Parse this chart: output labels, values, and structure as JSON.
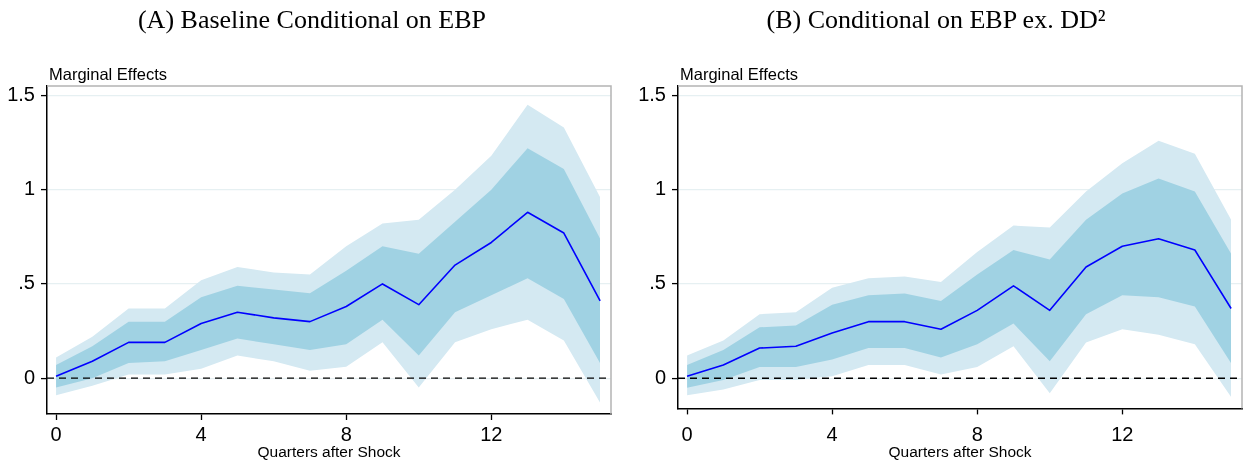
{
  "chart_data": [
    {
      "type": "line",
      "title": "(A) Baseline Conditional on EBP",
      "ylabel": "Marginal Effects",
      "xlabel": "Quarters after Shock",
      "x": [
        0,
        1,
        2,
        3,
        4,
        5,
        6,
        7,
        8,
        9,
        10,
        11,
        12,
        13,
        14,
        15
      ],
      "xlim": [
        -0.25,
        15.3
      ],
      "ylim": [
        -0.19,
        1.55
      ],
      "xticks": [
        0,
        4,
        8,
        12
      ],
      "yticks": [
        0,
        {
          "value": 0.5,
          "label": ".5"
        },
        1,
        1.5
      ],
      "grid": "y",
      "marker": "none",
      "series": [
        {
          "type": "area",
          "color": "#d4e9f2",
          "values": [
            null,
            null,
            null,
            null,
            null,
            null,
            null,
            null,
            null,
            null,
            null,
            null,
            null,
            null,
            null,
            null
          ],
          "lower": [
            -0.09,
            -0.04,
            0.02,
            0.02,
            0.05,
            0.12,
            0.09,
            0.04,
            0.06,
            0.19,
            -0.05,
            0.19,
            0.26,
            0.31,
            0.2,
            -0.13
          ],
          "upper": [
            0.11,
            0.22,
            0.37,
            0.37,
            0.52,
            0.59,
            0.56,
            0.55,
            0.7,
            0.82,
            0.84,
            1.0,
            1.18,
            1.45,
            1.33,
            0.96
          ]
        },
        {
          "type": "area",
          "color": "#a0d2e3",
          "values": [
            null,
            null,
            null,
            null,
            null,
            null,
            null,
            null,
            null,
            null,
            null,
            null,
            null,
            null,
            null,
            null
          ],
          "lower": [
            -0.05,
            0.0,
            0.08,
            0.09,
            0.15,
            0.21,
            0.18,
            0.15,
            0.18,
            0.31,
            0.12,
            0.35,
            0.44,
            0.53,
            0.42,
            0.08
          ],
          "upper": [
            0.07,
            0.17,
            0.3,
            0.3,
            0.43,
            0.49,
            0.47,
            0.45,
            0.57,
            0.7,
            0.66,
            0.83,
            1.0,
            1.22,
            1.11,
            0.74
          ]
        },
        {
          "type": "line",
          "color": "#0000ff",
          "values": [
            0.01,
            0.09,
            0.19,
            0.19,
            0.29,
            0.35,
            0.32,
            0.3,
            0.38,
            0.5,
            0.39,
            0.6,
            0.72,
            0.88,
            0.77,
            0.41
          ]
        }
      ],
      "ref_lines": [
        {
          "axis": "y",
          "value": 0,
          "color": "#000000",
          "line_style": "dashed"
        }
      ]
    },
    {
      "type": "line",
      "title": "(B) Conditional on EBP ex. DD²",
      "ylabel": "Marginal Effects",
      "xlabel": "Quarters after Shock",
      "x": [
        0,
        1,
        2,
        3,
        4,
        5,
        6,
        7,
        8,
        9,
        10,
        11,
        12,
        13,
        14,
        15
      ],
      "xlim": [
        -0.25,
        15.3
      ],
      "ylim": [
        -0.16,
        1.55
      ],
      "xticks": [
        0,
        4,
        8,
        12
      ],
      "yticks": [
        0,
        {
          "value": 0.5,
          "label": ".5"
        },
        1,
        1.5
      ],
      "grid": "y",
      "marker": "none",
      "series": [
        {
          "type": "area",
          "color": "#d4e9f2",
          "values": [
            null,
            null,
            null,
            null,
            null,
            null,
            null,
            null,
            null,
            null,
            null,
            null,
            null,
            null,
            null,
            null
          ],
          "lower": [
            -0.09,
            -0.06,
            -0.01,
            -0.01,
            0.01,
            0.07,
            0.07,
            0.02,
            0.06,
            0.17,
            -0.08,
            0.19,
            0.26,
            0.23,
            0.18,
            -0.1
          ],
          "upper": [
            0.12,
            0.2,
            0.34,
            0.35,
            0.48,
            0.53,
            0.54,
            0.51,
            0.67,
            0.81,
            0.8,
            0.99,
            1.14,
            1.26,
            1.19,
            0.84
          ]
        },
        {
          "type": "area",
          "color": "#a0d2e3",
          "values": [
            null,
            null,
            null,
            null,
            null,
            null,
            null,
            null,
            null,
            null,
            null,
            null,
            null,
            null,
            null,
            null
          ],
          "lower": [
            -0.05,
            -0.01,
            0.06,
            0.06,
            0.1,
            0.16,
            0.16,
            0.11,
            0.18,
            0.29,
            0.09,
            0.34,
            0.44,
            0.43,
            0.38,
            0.08
          ],
          "upper": [
            0.07,
            0.15,
            0.27,
            0.28,
            0.39,
            0.44,
            0.45,
            0.41,
            0.55,
            0.68,
            0.63,
            0.84,
            0.98,
            1.06,
            0.99,
            0.66
          ]
        },
        {
          "type": "line",
          "color": "#0000ff",
          "values": [
            0.01,
            0.07,
            0.16,
            0.17,
            0.24,
            0.3,
            0.3,
            0.26,
            0.36,
            0.49,
            0.36,
            0.59,
            0.7,
            0.74,
            0.68,
            0.37
          ]
        }
      ],
      "ref_lines": [
        {
          "axis": "y",
          "value": 0,
          "color": "#000000",
          "line_style": "dashed"
        }
      ]
    }
  ]
}
